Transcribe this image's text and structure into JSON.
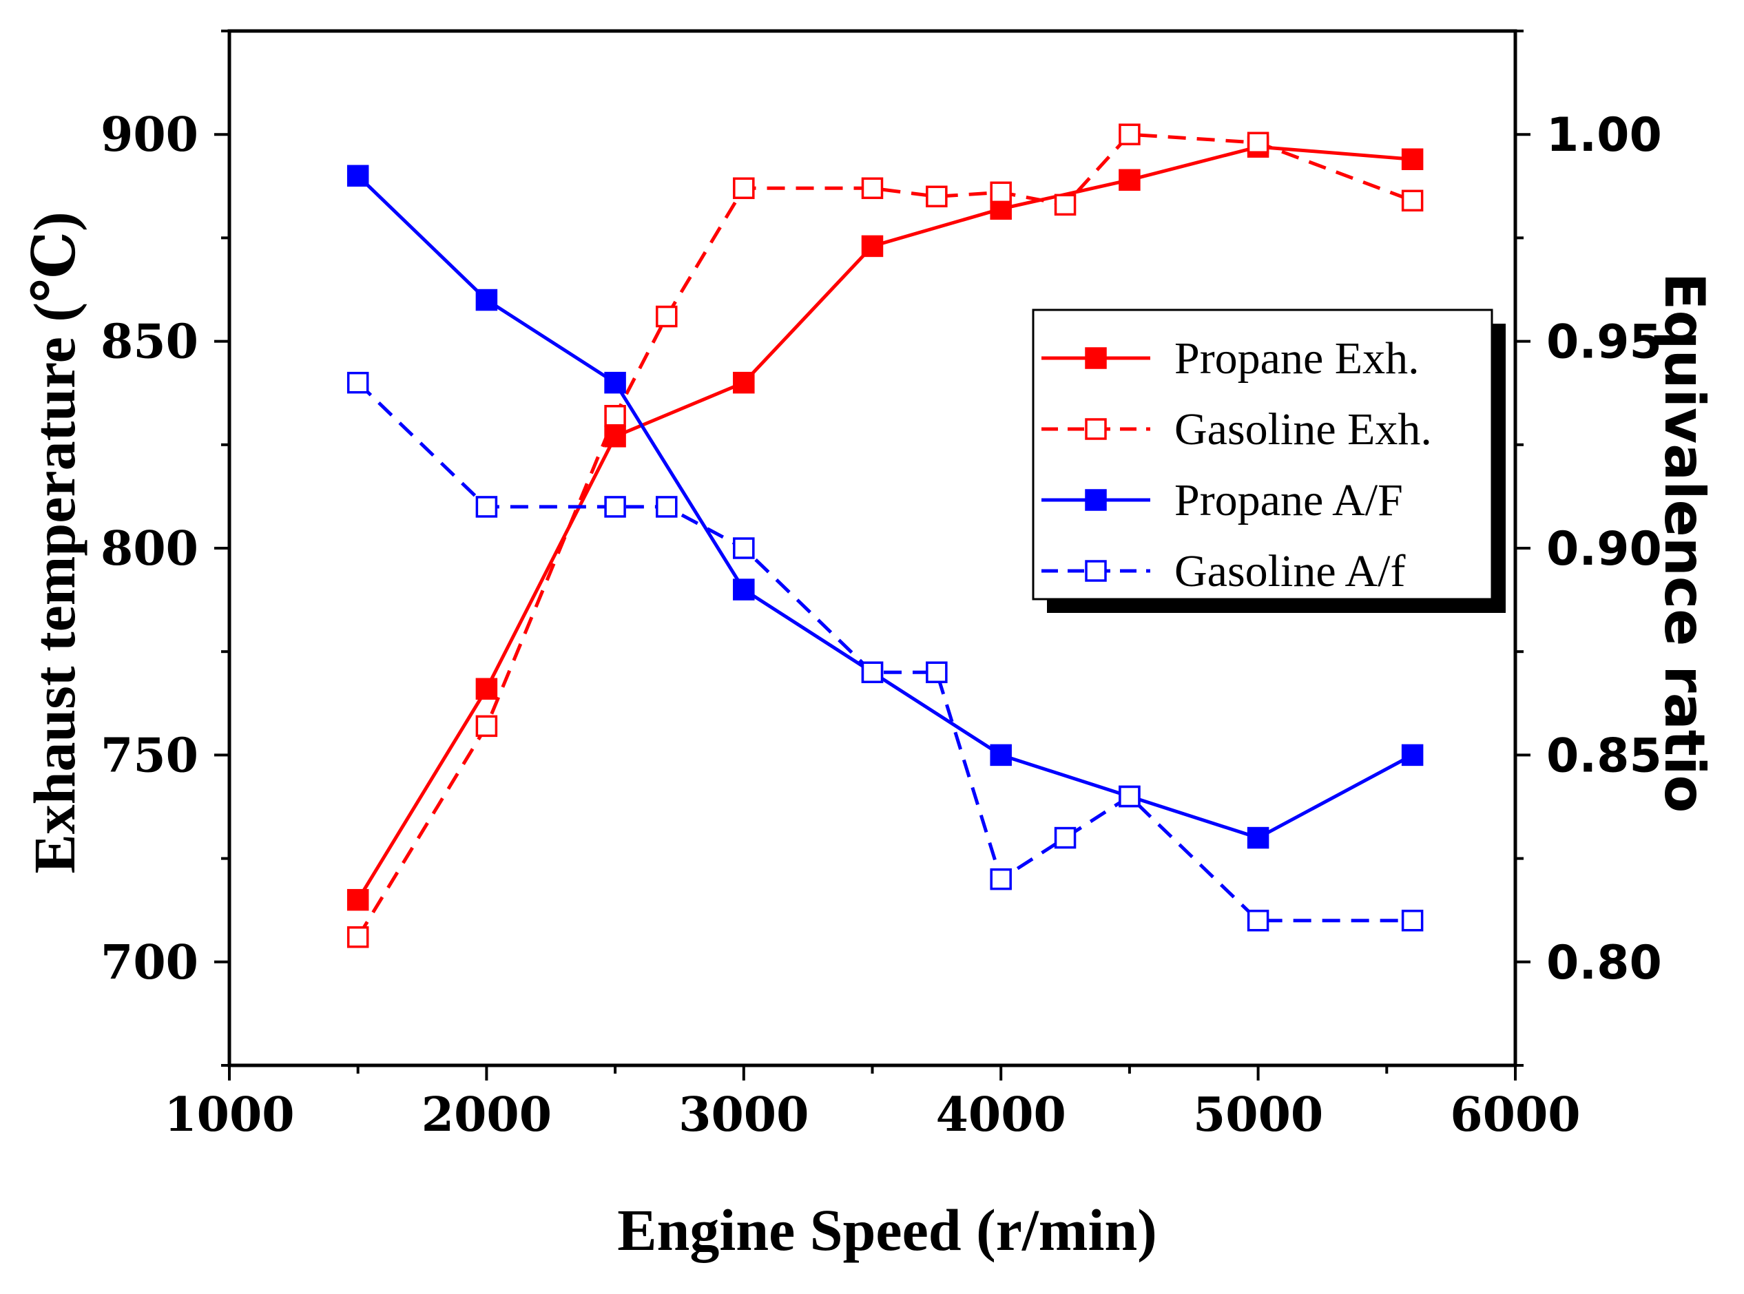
{
  "chart_data": {
    "type": "line",
    "title": "",
    "xlabel": "Engine Speed (r/min)",
    "ylabel": "Exhaust temperature (℃)",
    "y2label": "Equivalence ratio",
    "xlim": [
      1000,
      6000
    ],
    "ylim": [
      675,
      925
    ],
    "y2lim": [
      0.775,
      1.025
    ],
    "x_ticks": [
      "1000",
      "2000",
      "3000",
      "4000",
      "5000",
      "6000"
    ],
    "y_ticks": [
      "700",
      "750",
      "800",
      "850",
      "900"
    ],
    "y2_ticks": [
      "0.80",
      "0.85",
      "0.90",
      "0.95",
      "1.00"
    ],
    "x_tick_values": [
      1000,
      2000,
      3000,
      4000,
      5000,
      6000
    ],
    "y_tick_values": [
      700,
      750,
      800,
      850,
      900
    ],
    "y2_tick_values": [
      0.8,
      0.85,
      0.9,
      0.95,
      1.0
    ],
    "legend_position": "right-center",
    "series": [
      {
        "name": "Propane Exh.",
        "axis": "left",
        "color": "#ff0000",
        "line_style": "solid",
        "marker": "filled-square",
        "x": [
          1500,
          2000,
          2500,
          3000,
          3500,
          4000,
          4500,
          5000,
          5600
        ],
        "values": [
          715,
          766,
          827,
          840,
          873,
          882,
          889,
          897,
          894
        ]
      },
      {
        "name": "Gasoline Exh.",
        "axis": "left",
        "color": "#ff0000",
        "line_style": "dashed",
        "marker": "open-square",
        "x": [
          1500,
          2000,
          2500,
          2700,
          3000,
          3500,
          3750,
          4000,
          4250,
          4500,
          5000,
          5600
        ],
        "values": [
          706,
          757,
          832,
          856,
          887,
          887,
          885,
          886,
          883,
          900,
          898,
          884
        ]
      },
      {
        "name": "Propane A/F",
        "axis": "right",
        "color": "#0000ff",
        "line_style": "solid",
        "marker": "filled-square",
        "x": [
          1500,
          2000,
          2500,
          3000,
          3500,
          4000,
          4500,
          5000,
          5600
        ],
        "values": [
          0.99,
          0.96,
          0.94,
          0.89,
          0.87,
          0.85,
          0.84,
          0.83,
          0.85
        ]
      },
      {
        "name": "Gasoline A/f",
        "axis": "right",
        "color": "#0000ff",
        "line_style": "dashed",
        "marker": "open-square",
        "x": [
          1500,
          2000,
          2500,
          2700,
          3000,
          3500,
          3750,
          4000,
          4250,
          4500,
          5000,
          5600
        ],
        "values": [
          0.94,
          0.91,
          0.91,
          0.91,
          0.9,
          0.87,
          0.87,
          0.82,
          0.83,
          0.84,
          0.81,
          0.81
        ]
      }
    ]
  }
}
